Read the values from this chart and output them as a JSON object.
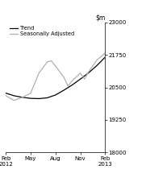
{
  "ylim": [
    18000,
    23000
  ],
  "yticks": [
    18000,
    19250,
    20500,
    21750,
    23000
  ],
  "xtick_labels": [
    "Feb\n2012",
    "May",
    "Aug",
    "Nov",
    "Feb\n2013"
  ],
  "xtick_positions": [
    0,
    3,
    6,
    9,
    12
  ],
  "legend_entries": [
    "Trend",
    "Seasonally Adjusted"
  ],
  "trend_color": "#000000",
  "seasonal_color": "#b0b0b0",
  "background_color": "#ffffff",
  "trend_data": [
    [
      0,
      20280
    ],
    [
      1,
      20180
    ],
    [
      2,
      20120
    ],
    [
      3,
      20080
    ],
    [
      4,
      20070
    ],
    [
      5,
      20100
    ],
    [
      6,
      20210
    ],
    [
      7,
      20390
    ],
    [
      8,
      20590
    ],
    [
      9,
      20820
    ],
    [
      10,
      21060
    ],
    [
      11,
      21340
    ],
    [
      12,
      21660
    ]
  ],
  "seasonal_data": [
    [
      0,
      20180
    ],
    [
      1,
      20000
    ],
    [
      2,
      20120
    ],
    [
      3,
      20280
    ],
    [
      4,
      21050
    ],
    [
      5,
      21480
    ],
    [
      5.5,
      21520
    ],
    [
      6,
      21320
    ],
    [
      7,
      20900
    ],
    [
      7.5,
      20550
    ],
    [
      8,
      20750
    ],
    [
      9,
      21050
    ],
    [
      9.5,
      20820
    ],
    [
      10,
      21100
    ],
    [
      11,
      21550
    ],
    [
      12,
      21820
    ]
  ]
}
